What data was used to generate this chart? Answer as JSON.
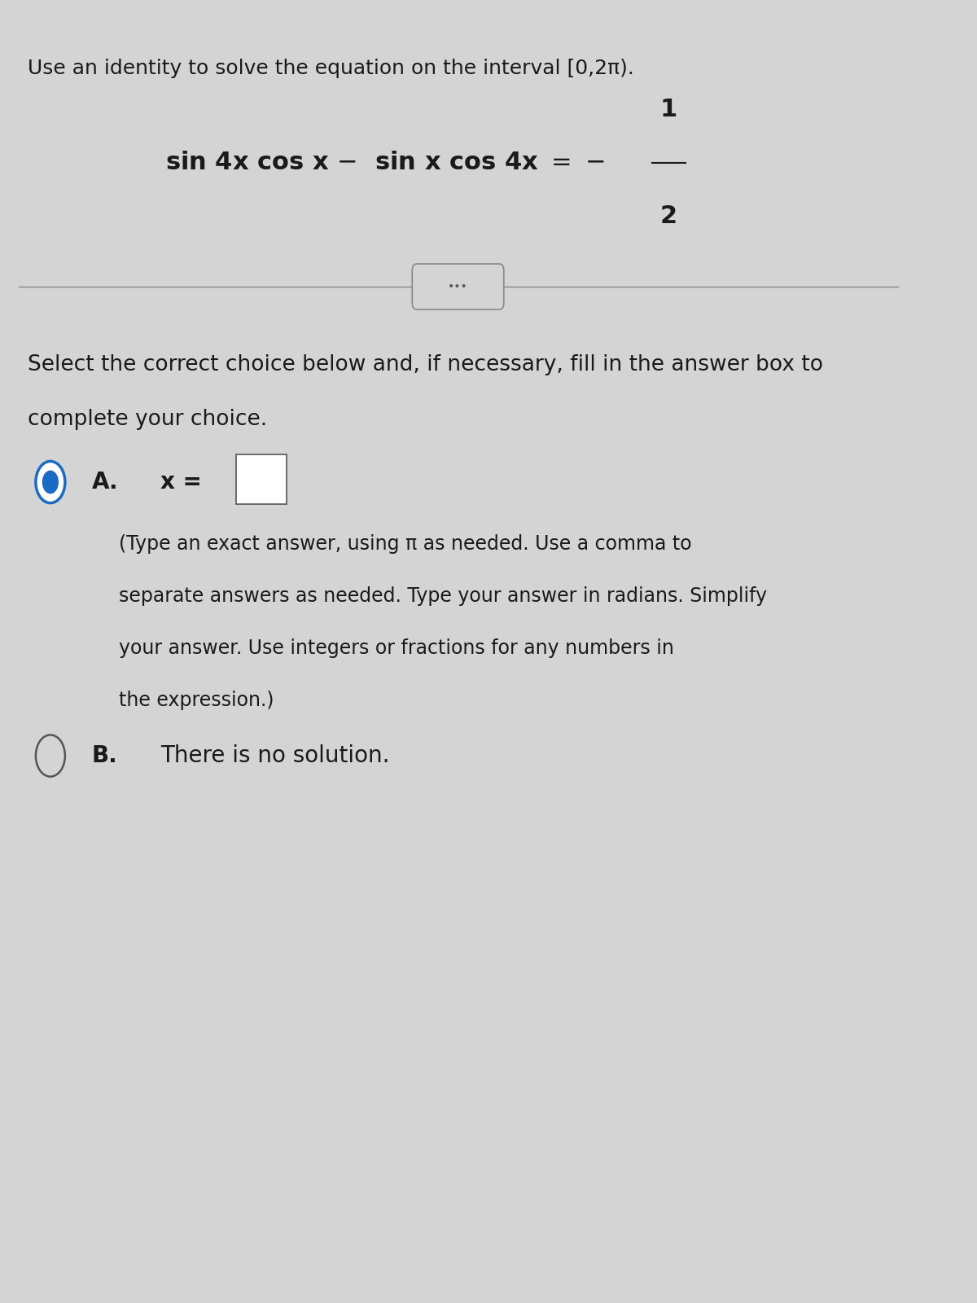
{
  "bg_color": "#d4d4d4",
  "title_text": "Use an identity to solve the equation on the interval [0,2π).",
  "option_a_label": "A.",
  "option_a_eq": "x =",
  "option_a_hint": "(Type an exact answer, using π as needed. Use a comma to\nseparate answers as needed. Type your answer in radians. Simplify\nyour answer. Use integers or fractions for any numbers in\nthe expression.)",
  "option_b_label": "B.",
  "option_b_text": "There is no solution.",
  "select_text_line1": "Select the correct choice below and, if necessary, fill in the answer box to",
  "select_text_line2": "complete your choice.",
  "text_color": "#1a1a1a",
  "font_size_title": 18,
  "font_size_eq": 22,
  "font_size_label": 20,
  "font_size_hint": 17,
  "font_size_select": 19
}
